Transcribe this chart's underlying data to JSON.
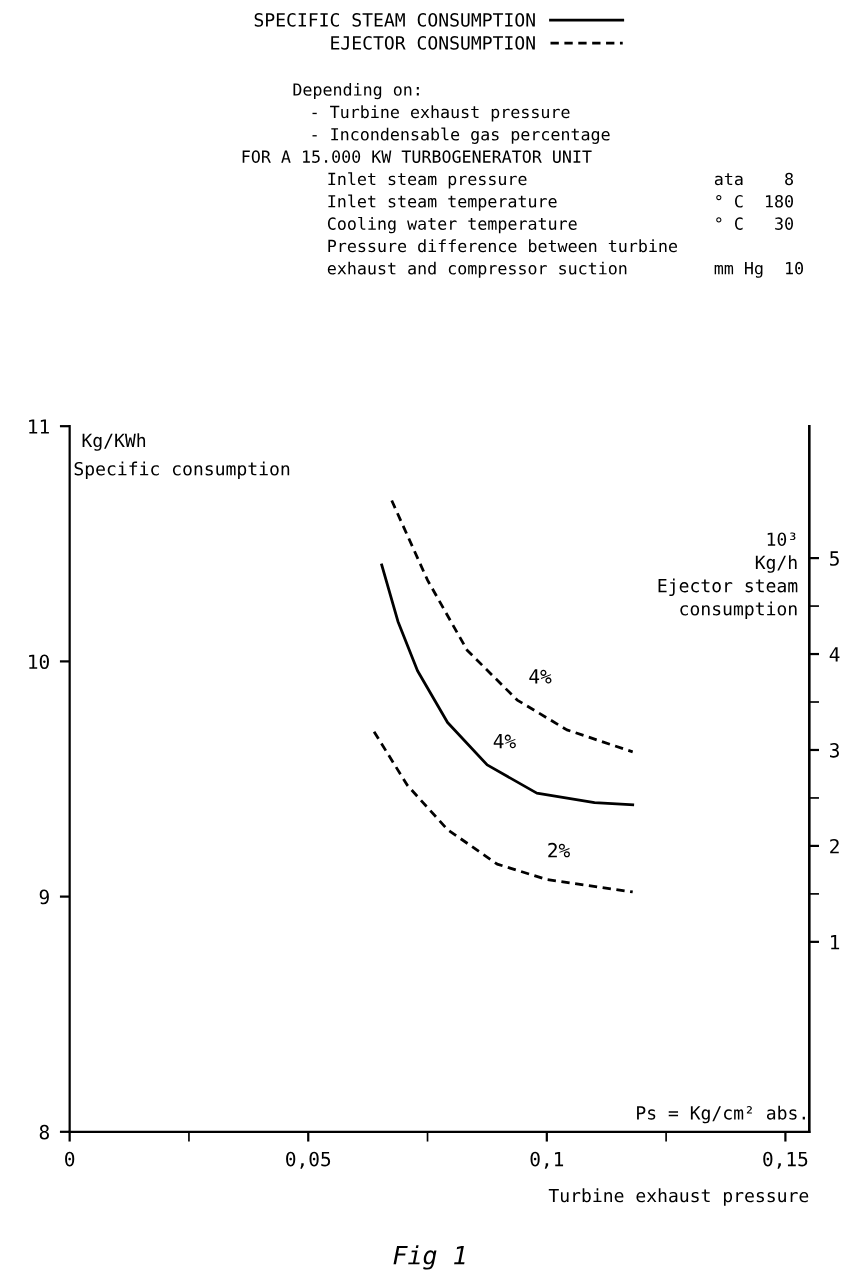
{
  "chart_data": {
    "type": "line",
    "title": null,
    "annotations": [
      "Depending on:",
      "- Turbine exhaust pressure",
      "- Incondensable gas percentage",
      "FOR A 15.000 KW TURBOGENERATOR UNIT",
      "Inlet steam pressure",
      "ata    8",
      "Inlet steam temperature",
      "° C  180",
      "Cooling water temperature",
      "° C   30",
      "Pressure difference between turbine",
      "exhaust and compressor suction",
      "mm Hg  10",
      "4%",
      "4%",
      "2%",
      "Fig 1"
    ],
    "ylabel": "Kg/KWh\nSpecific consumption",
    "y2label": "10³\nKg/h\nEjector steam\nconsumption",
    "xlabel": "Ps = Kg/cm² abs.\nTurbine exhaust pressure",
    "xlim": [
      0,
      0.155
    ],
    "xticks": [
      {
        "value": 0,
        "label": "0"
      },
      {
        "value": 0.025,
        "label": null
      },
      {
        "value": 0.05,
        "label": "0,05"
      },
      {
        "value": 0.075,
        "label": null
      },
      {
        "value": 0.1,
        "label": "0,1"
      },
      {
        "value": 0.125,
        "label": null
      },
      {
        "value": 0.15,
        "label": "0,15"
      }
    ],
    "ylim": [
      8,
      11
    ],
    "yticks": [
      8,
      9,
      10,
      11
    ],
    "y2lim": [
      -0.98,
      6.375
    ],
    "y2ticks": [
      1,
      {
        "value": 1.5,
        "label": null
      },
      2,
      {
        "value": 2.5,
        "label": null
      },
      3,
      {
        "value": 3.5,
        "label": null
      },
      4,
      {
        "value": 4.5,
        "label": null
      },
      5
    ],
    "legend": "top left",
    "grid": false,
    "series": [
      {
        "name": "SPECIFIC STEAM CONSUMPTION",
        "color": "#000000",
        "line_style": "solid",
        "x": [
          0.0654,
          0.0688,
          0.0729,
          0.0792,
          0.0875,
          0.0979,
          0.11,
          0.118
        ],
        "values": [
          10.41,
          10.17,
          9.96,
          9.74,
          9.56,
          9.44,
          9.4,
          9.39
        ]
      },
      {
        "name": "EJECTOR CONSUMPTION",
        "color": "#000000",
        "line_style": "dashed",
        "axis": "y2",
        "x": [
          0.0675,
          0.075,
          0.0833,
          0.0938,
          0.1042,
          0.118
        ],
        "values": [
          5.6,
          4.77,
          4.04,
          3.52,
          3.21,
          2.98
        ]
      },
      {
        "color": "#000000",
        "line_style": "dashed",
        "axis": "y2",
        "x": [
          0.0638,
          0.0708,
          0.0792,
          0.0896,
          0.1,
          0.118
        ],
        "values": [
          3.19,
          2.63,
          2.17,
          1.81,
          1.65,
          1.52
        ]
      }
    ]
  }
}
